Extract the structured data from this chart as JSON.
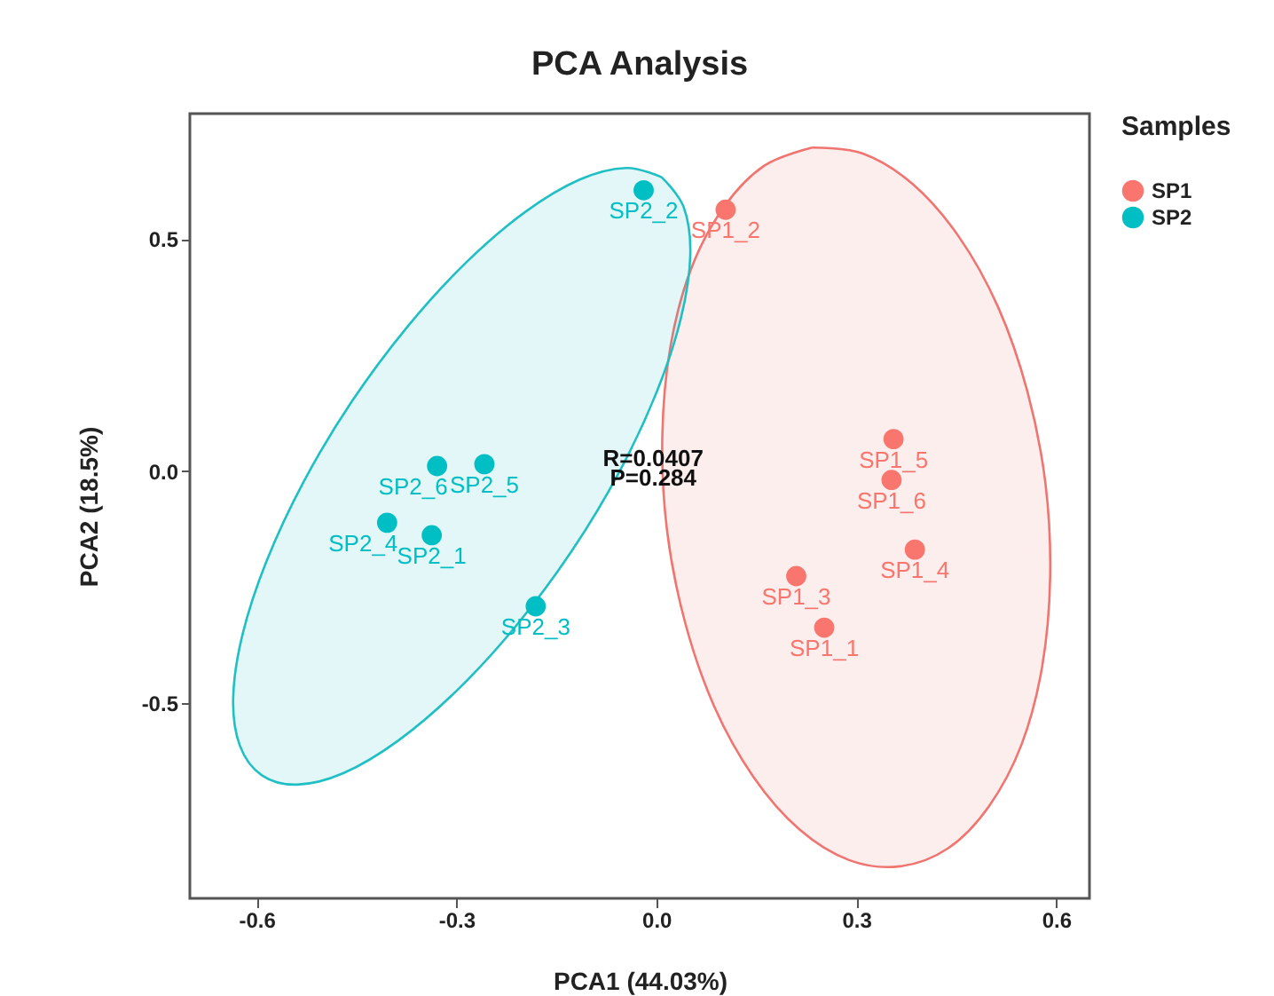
{
  "chart_data": {
    "type": "scatter",
    "title": "PCA Analysis",
    "xlabel": "PCA1 (44.03%)",
    "ylabel": "PCA2 (18.5%)",
    "legend_title": "Samples",
    "xlim": [
      -0.7,
      0.65
    ],
    "xticks": [
      {
        "value": -0.6,
        "label": "-0.6"
      },
      {
        "value": -0.3,
        "label": "-0.3"
      },
      {
        "value": 0,
        "label": "0.0"
      },
      {
        "value": 0.3,
        "label": "0.3"
      },
      {
        "value": 0.6,
        "label": "0.6"
      }
    ],
    "ylim": [
      -0.92,
      0.77
    ],
    "yticks": [
      {
        "value": -0.5,
        "label": "-0.5"
      },
      {
        "value": 0,
        "label": "0.0"
      },
      {
        "value": 0.5,
        "label": "0.5"
      }
    ],
    "grid": false,
    "legend": "right",
    "annotations": [
      "R=0.0407",
      "P=0.284"
    ],
    "series": [
      {
        "type": "area",
        "color": "#f07470",
        "x": [
          0.234,
          0.31,
          0.385,
          0.454,
          0.513,
          0.557,
          0.584,
          0.591,
          0.579,
          0.548,
          0.499,
          0.438,
          0.366,
          0.29,
          0.215,
          0.146,
          0.087,
          0.043,
          0.016,
          0.009,
          0.021,
          0.052,
          0.101,
          0.162,
          0.234
        ],
        "values": [
          0.697,
          0.684,
          0.618,
          0.505,
          0.353,
          0.171,
          -0.027,
          -0.229,
          -0.421,
          -0.589,
          -0.722,
          -0.812,
          -0.851,
          -0.838,
          -0.772,
          -0.659,
          -0.507,
          -0.325,
          -0.127,
          0.075,
          0.267,
          0.435,
          0.568,
          0.658,
          0.697
        ]
      },
      {
        "type": "area",
        "color": "#1fbfc4",
        "x": [
          0.008,
          0.041,
          0.051,
          0.037,
          0.001,
          -0.055,
          -0.127,
          -0.211,
          -0.299,
          -0.387,
          -0.469,
          -0.539,
          -0.592,
          -0.625,
          -0.635,
          -0.621,
          -0.585,
          -0.529,
          -0.457,
          -0.373,
          -0.285,
          -0.197,
          -0.115,
          -0.045,
          0.008
        ],
        "values": [
          0.633,
          0.569,
          0.466,
          0.33,
          0.172,
          0.0,
          -0.172,
          -0.334,
          -0.472,
          -0.58,
          -0.65,
          -0.675,
          -0.655,
          -0.591,
          -0.488,
          -0.352,
          -0.194,
          -0.022,
          0.15,
          0.312,
          0.45,
          0.558,
          0.628,
          0.653,
          0.633
        ]
      },
      {
        "name": "SP1",
        "color": "#f8766d",
        "marker": "circle",
        "x": [
          0.104,
          0.356,
          0.353,
          0.388,
          0.21,
          0.252
        ],
        "values": [
          0.563,
          0.069,
          -0.019,
          -0.169,
          -0.226,
          -0.337
        ],
        "value_labels": [
          "SP1_2",
          "SP1_5",
          "SP1_6",
          "SP1_4",
          "SP1_3",
          "SP1_1"
        ]
      },
      {
        "name": "SP2",
        "color": "#00bfc4",
        "marker": "circle",
        "x": [
          -0.019,
          -0.258,
          -0.329,
          -0.404,
          -0.337,
          -0.181
        ],
        "values": [
          0.605,
          0.015,
          0.011,
          -0.111,
          -0.138,
          -0.291
        ],
        "value_labels": [
          "SP2_2",
          "SP2_5",
          "SP2_6",
          "SP2_4",
          "SP2_1",
          "SP2_3"
        ]
      }
    ]
  }
}
